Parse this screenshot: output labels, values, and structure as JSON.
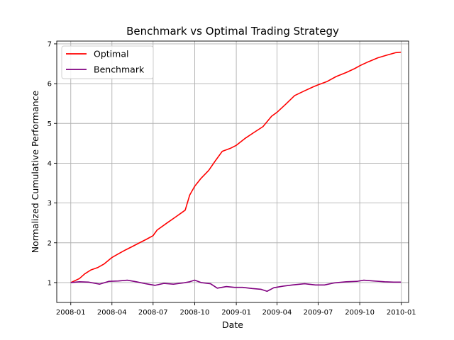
{
  "chart_data": {
    "type": "line",
    "title": "Benchmark vs Optimal Trading Strategy",
    "xlabel": "Date",
    "ylabel": "Normalized Cumulative Performance",
    "xlim": [
      "2007-12-01",
      "2010-01-17"
    ],
    "ylim": [
      0.5,
      7.07
    ],
    "grid": true,
    "legend_position": "upper-left",
    "x_ticks": [
      {
        "label": "2008-01",
        "date": "2008-01-01"
      },
      {
        "label": "2008-04",
        "date": "2008-04-01"
      },
      {
        "label": "2008-07",
        "date": "2008-07-01"
      },
      {
        "label": "2008-10",
        "date": "2008-10-01"
      },
      {
        "label": "2009-01",
        "date": "2009-01-01"
      },
      {
        "label": "2009-04",
        "date": "2009-04-01"
      },
      {
        "label": "2009-07",
        "date": "2009-07-01"
      },
      {
        "label": "2009-10",
        "date": "2009-10-01"
      },
      {
        "label": "2010-01",
        "date": "2010-01-01"
      }
    ],
    "y_ticks": [
      1,
      2,
      3,
      4,
      5,
      6,
      7
    ],
    "series": [
      {
        "name": "Optimal",
        "color": "#ff0000",
        "points": [
          [
            "2008-01-01",
            1.0
          ],
          [
            "2008-01-20",
            1.1
          ],
          [
            "2008-02-01",
            1.22
          ],
          [
            "2008-02-15",
            1.32
          ],
          [
            "2008-03-01",
            1.38
          ],
          [
            "2008-03-15",
            1.47
          ],
          [
            "2008-04-01",
            1.63
          ],
          [
            "2008-04-15",
            1.72
          ],
          [
            "2008-05-01",
            1.82
          ],
          [
            "2008-05-15",
            1.9
          ],
          [
            "2008-06-01",
            2.0
          ],
          [
            "2008-06-15",
            2.08
          ],
          [
            "2008-07-01",
            2.18
          ],
          [
            "2008-07-10",
            2.32
          ],
          [
            "2008-08-01",
            2.5
          ],
          [
            "2008-08-20",
            2.65
          ],
          [
            "2008-09-10",
            2.82
          ],
          [
            "2008-09-20",
            3.2
          ],
          [
            "2008-10-01",
            3.42
          ],
          [
            "2008-10-15",
            3.62
          ],
          [
            "2008-11-01",
            3.82
          ],
          [
            "2008-11-15",
            4.05
          ],
          [
            "2008-12-01",
            4.3
          ],
          [
            "2008-12-20",
            4.38
          ],
          [
            "2009-01-01",
            4.45
          ],
          [
            "2009-01-20",
            4.62
          ],
          [
            "2009-02-10",
            4.78
          ],
          [
            "2009-03-01",
            4.92
          ],
          [
            "2009-03-20",
            5.18
          ],
          [
            "2009-04-01",
            5.28
          ],
          [
            "2009-04-20",
            5.48
          ],
          [
            "2009-05-10",
            5.7
          ],
          [
            "2009-06-01",
            5.82
          ],
          [
            "2009-06-20",
            5.92
          ],
          [
            "2009-07-01",
            5.97
          ],
          [
            "2009-07-20",
            6.05
          ],
          [
            "2009-08-10",
            6.18
          ],
          [
            "2009-09-01",
            6.28
          ],
          [
            "2009-09-20",
            6.38
          ],
          [
            "2009-10-01",
            6.45
          ],
          [
            "2009-10-20",
            6.55
          ],
          [
            "2009-11-10",
            6.65
          ],
          [
            "2009-12-01",
            6.72
          ],
          [
            "2009-12-20",
            6.78
          ],
          [
            "2009-12-31",
            6.79
          ]
        ]
      },
      {
        "name": "Benchmark",
        "color": "#800080",
        "points": [
          [
            "2008-01-01",
            1.0
          ],
          [
            "2008-01-20",
            1.02
          ],
          [
            "2008-02-10",
            1.01
          ],
          [
            "2008-03-05",
            0.96
          ],
          [
            "2008-03-25",
            1.03
          ],
          [
            "2008-04-15",
            1.04
          ],
          [
            "2008-05-05",
            1.06
          ],
          [
            "2008-05-25",
            1.02
          ],
          [
            "2008-06-15",
            0.97
          ],
          [
            "2008-07-05",
            0.93
          ],
          [
            "2008-07-25",
            0.98
          ],
          [
            "2008-08-15",
            0.96
          ],
          [
            "2008-09-05",
            0.99
          ],
          [
            "2008-09-20",
            1.02
          ],
          [
            "2008-10-01",
            1.06
          ],
          [
            "2008-10-15",
            1.0
          ],
          [
            "2008-11-05",
            0.97
          ],
          [
            "2008-11-20",
            0.86
          ],
          [
            "2008-12-10",
            0.9
          ],
          [
            "2008-12-28",
            0.88
          ],
          [
            "2009-01-15",
            0.88
          ],
          [
            "2009-02-05",
            0.85
          ],
          [
            "2009-02-25",
            0.83
          ],
          [
            "2009-03-10",
            0.78
          ],
          [
            "2009-03-25",
            0.87
          ],
          [
            "2009-04-15",
            0.91
          ],
          [
            "2009-05-05",
            0.94
          ],
          [
            "2009-06-01",
            0.97
          ],
          [
            "2009-06-25",
            0.94
          ],
          [
            "2009-07-15",
            0.94
          ],
          [
            "2009-08-05",
            0.99
          ],
          [
            "2009-09-01",
            1.02
          ],
          [
            "2009-09-25",
            1.03
          ],
          [
            "2009-10-10",
            1.06
          ],
          [
            "2009-11-01",
            1.04
          ],
          [
            "2009-11-25",
            1.02
          ],
          [
            "2009-12-15",
            1.01
          ],
          [
            "2009-12-31",
            1.01
          ]
        ]
      }
    ]
  }
}
